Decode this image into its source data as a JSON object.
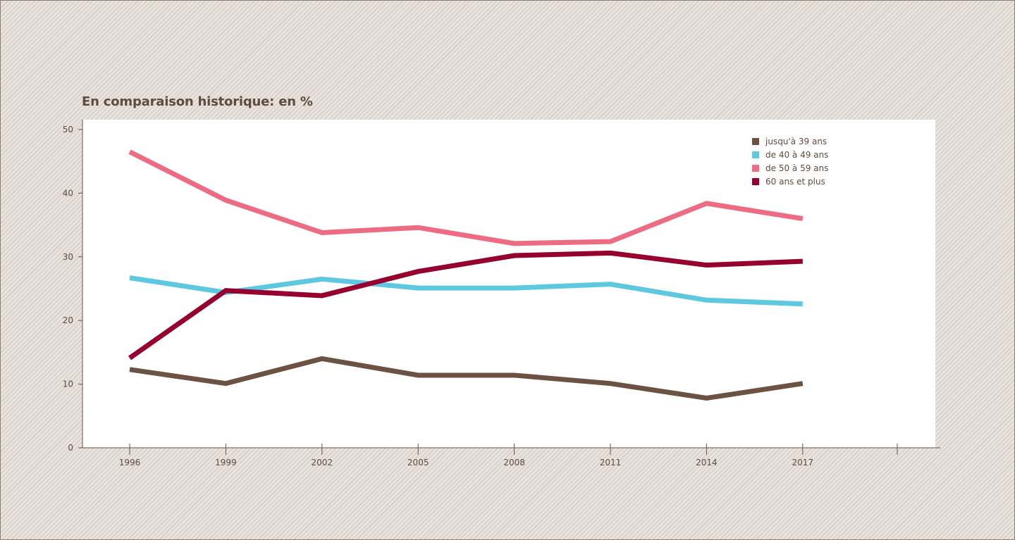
{
  "chart_data": {
    "type": "line",
    "title": "En comparaison historique: en %",
    "xlabel": "",
    "ylabel": "",
    "x": [
      "1996",
      "1999",
      "2002",
      "2005",
      "2008",
      "2011",
      "2014",
      "2017"
    ],
    "ylim": [
      0,
      50
    ],
    "yticks": [
      0,
      10,
      20,
      30,
      40,
      50
    ],
    "grid": false,
    "legend_position": "top-right",
    "series": [
      {
        "name": "jusqu'à 39 ans",
        "color": "#6b5242",
        "values": [
          12.3,
          10.1,
          14.0,
          11.4,
          11.4,
          10.1,
          7.8,
          10.1
        ]
      },
      {
        "name": "de 40 à 49 ans",
        "color": "#5cc9e0",
        "values": [
          26.7,
          24.4,
          26.5,
          25.1,
          25.1,
          25.7,
          23.2,
          22.6
        ]
      },
      {
        "name": "de 50 à 59 ans",
        "color": "#ed6c84",
        "values": [
          46.5,
          38.9,
          33.8,
          34.6,
          32.1,
          32.4,
          38.4,
          36.0
        ]
      },
      {
        "name": "60 ans et plus",
        "color": "#96002f",
        "values": [
          14.1,
          24.7,
          23.9,
          27.7,
          30.2,
          30.6,
          28.7,
          29.3
        ]
      }
    ]
  }
}
